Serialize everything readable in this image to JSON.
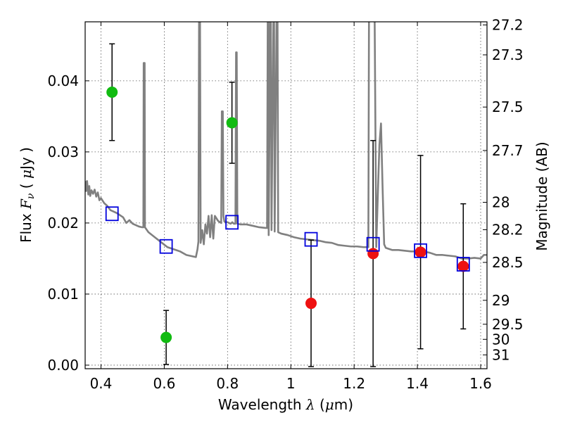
{
  "chart_data": {
    "type": "scatter",
    "xlabel": "Wavelength  λ (μm)",
    "ylabel_left": "Flux  F_ν  ( μJy )",
    "ylabel_right": "Magnitude (AB)",
    "xlim": [
      0.35,
      1.62
    ],
    "ylim": [
      -0.0005,
      0.0483
    ],
    "grid": true,
    "x_ticks": [
      0.4,
      0.6,
      0.8,
      1.0,
      1.2,
      1.4,
      1.6
    ],
    "x_tick_labels": [
      "0.4",
      "0.6",
      "0.8",
      "1",
      "1.2",
      "1.4",
      "1.6"
    ],
    "y_ticks": [
      0.0,
      0.01,
      0.02,
      0.03,
      0.04
    ],
    "y_tick_labels": [
      "0.00",
      "0.01",
      "0.02",
      "0.03",
      "0.04"
    ],
    "right_axis": {
      "scale": "AB magnitude",
      "ticks": [
        27.2,
        27.3,
        27.5,
        27.7,
        28,
        28.2,
        28.5,
        29,
        29.5,
        30,
        31
      ],
      "tick_labels": [
        "27.2",
        "27.3",
        "27.5",
        "27.7",
        "28",
        "28.2",
        "28.5",
        "29",
        "29.5",
        "30",
        "31"
      ]
    },
    "colors": {
      "model": "#808080",
      "green": "#11bb11",
      "red": "#ee1111",
      "square": "#0000dd",
      "errorbar": "#000000",
      "grid": "#555555"
    },
    "series": [
      {
        "kind": "line",
        "color": "gray",
        "points": [
          [
            0.35,
            0.0259
          ],
          [
            0.353,
            0.0245
          ],
          [
            0.356,
            0.0259
          ],
          [
            0.36,
            0.024
          ],
          [
            0.363,
            0.0252
          ],
          [
            0.366,
            0.0238
          ],
          [
            0.37,
            0.0246
          ],
          [
            0.375,
            0.0241
          ],
          [
            0.38,
            0.0247
          ],
          [
            0.385,
            0.0237
          ],
          [
            0.39,
            0.0243
          ],
          [
            0.395,
            0.0232
          ],
          [
            0.4,
            0.0235
          ],
          [
            0.41,
            0.0228
          ],
          [
            0.42,
            0.0224
          ],
          [
            0.43,
            0.0218
          ],
          [
            0.44,
            0.0216
          ],
          [
            0.45,
            0.0214
          ],
          [
            0.46,
            0.0211
          ],
          [
            0.47,
            0.0208
          ],
          [
            0.48,
            0.02
          ],
          [
            0.49,
            0.0204
          ],
          [
            0.5,
            0.0199
          ],
          [
            0.51,
            0.0197
          ],
          [
            0.52,
            0.0195
          ],
          [
            0.53,
            0.0194
          ],
          [
            0.534,
            0.0194
          ],
          [
            0.535,
            0.0425
          ],
          [
            0.538,
            0.0425
          ],
          [
            0.539,
            0.0194
          ],
          [
            0.55,
            0.0187
          ],
          [
            0.57,
            0.018
          ],
          [
            0.59,
            0.0173
          ],
          [
            0.61,
            0.0166
          ],
          [
            0.63,
            0.0163
          ],
          [
            0.65,
            0.016
          ],
          [
            0.67,
            0.0155
          ],
          [
            0.69,
            0.0153
          ],
          [
            0.7,
            0.0152
          ],
          [
            0.705,
            0.0163
          ],
          [
            0.708,
            0.0174
          ],
          [
            0.71,
            0.0485
          ],
          [
            0.713,
            0.0485
          ],
          [
            0.715,
            0.0172
          ],
          [
            0.72,
            0.019
          ],
          [
            0.725,
            0.017
          ],
          [
            0.73,
            0.0198
          ],
          [
            0.735,
            0.0185
          ],
          [
            0.74,
            0.021
          ],
          [
            0.745,
            0.018
          ],
          [
            0.75,
            0.0211
          ],
          [
            0.755,
            0.0178
          ],
          [
            0.76,
            0.021
          ],
          [
            0.77,
            0.0203
          ],
          [
            0.78,
            0.02
          ],
          [
            0.782,
            0.0357
          ],
          [
            0.785,
            0.0357
          ],
          [
            0.787,
            0.021
          ],
          [
            0.79,
            0.0202
          ],
          [
            0.8,
            0.0201
          ],
          [
            0.81,
            0.0199
          ],
          [
            0.815,
            0.0201
          ],
          [
            0.82,
            0.0199
          ],
          [
            0.825,
            0.0199
          ],
          [
            0.827,
            0.044
          ],
          [
            0.829,
            0.044
          ],
          [
            0.831,
            0.0199
          ],
          [
            0.84,
            0.0198
          ],
          [
            0.86,
            0.0198
          ],
          [
            0.88,
            0.0196
          ],
          [
            0.9,
            0.0194
          ],
          [
            0.92,
            0.0193
          ],
          [
            0.925,
            0.0193
          ],
          [
            0.927,
            0.0485
          ],
          [
            0.929,
            0.0485
          ],
          [
            0.93,
            0.0183
          ],
          [
            0.935,
            0.0485
          ],
          [
            0.937,
            0.0485
          ],
          [
            0.939,
            0.019
          ],
          [
            0.945,
            0.0485
          ],
          [
            0.947,
            0.0485
          ],
          [
            0.949,
            0.0188
          ],
          [
            0.955,
            0.0485
          ],
          [
            0.958,
            0.0485
          ],
          [
            0.96,
            0.0187
          ],
          [
            0.97,
            0.0185
          ],
          [
            0.99,
            0.0183
          ],
          [
            1.01,
            0.018
          ],
          [
            1.03,
            0.0178
          ],
          [
            1.05,
            0.0177
          ],
          [
            1.07,
            0.0176
          ],
          [
            1.09,
            0.0175
          ],
          [
            1.11,
            0.0173
          ],
          [
            1.13,
            0.0172
          ],
          [
            1.15,
            0.0169
          ],
          [
            1.17,
            0.0168
          ],
          [
            1.19,
            0.0167
          ],
          [
            1.21,
            0.0167
          ],
          [
            1.23,
            0.0166
          ],
          [
            1.245,
            0.0166
          ],
          [
            1.247,
            0.0485
          ],
          [
            1.265,
            0.0485
          ],
          [
            1.27,
            0.0166
          ],
          [
            1.275,
            0.024
          ],
          [
            1.28,
            0.031
          ],
          [
            1.285,
            0.034
          ],
          [
            1.29,
            0.025
          ],
          [
            1.295,
            0.017
          ],
          [
            1.3,
            0.0165
          ],
          [
            1.32,
            0.0162
          ],
          [
            1.34,
            0.0162
          ],
          [
            1.36,
            0.0161
          ],
          [
            1.38,
            0.016
          ],
          [
            1.4,
            0.016
          ],
          [
            1.42,
            0.016
          ],
          [
            1.44,
            0.0158
          ],
          [
            1.46,
            0.0155
          ],
          [
            1.48,
            0.0155
          ],
          [
            1.5,
            0.0154
          ],
          [
            1.52,
            0.0153
          ],
          [
            1.54,
            0.015
          ],
          [
            1.56,
            0.015
          ],
          [
            1.58,
            0.0151
          ],
          [
            1.6,
            0.015
          ],
          [
            1.61,
            0.0155
          ],
          [
            1.62,
            0.0155
          ]
        ]
      },
      {
        "kind": "points_with_errors",
        "color": "green",
        "points": [
          {
            "x": 0.435,
            "y": 0.0384,
            "yerr": 0.0068
          },
          {
            "x": 0.606,
            "y": 0.0039,
            "yerr": 0.0038
          },
          {
            "x": 0.814,
            "y": 0.0341,
            "yerr": 0.0057
          }
        ]
      },
      {
        "kind": "points_with_errors",
        "color": "red",
        "points": [
          {
            "x": 1.064,
            "y": 0.0087,
            "yerr": 0.0089
          },
          {
            "x": 1.26,
            "y": 0.0157,
            "yerr": 0.0159
          },
          {
            "x": 1.41,
            "y": 0.0159,
            "yerr": 0.0136
          },
          {
            "x": 1.545,
            "y": 0.0139,
            "yerr": 0.0088
          }
        ]
      },
      {
        "kind": "open_squares",
        "color": "blue",
        "points": [
          {
            "x": 0.435,
            "y": 0.0213
          },
          {
            "x": 0.606,
            "y": 0.0167
          },
          {
            "x": 0.814,
            "y": 0.0201
          },
          {
            "x": 1.064,
            "y": 0.0177
          },
          {
            "x": 1.26,
            "y": 0.017
          },
          {
            "x": 1.41,
            "y": 0.0161
          },
          {
            "x": 1.545,
            "y": 0.0142
          }
        ]
      }
    ]
  }
}
